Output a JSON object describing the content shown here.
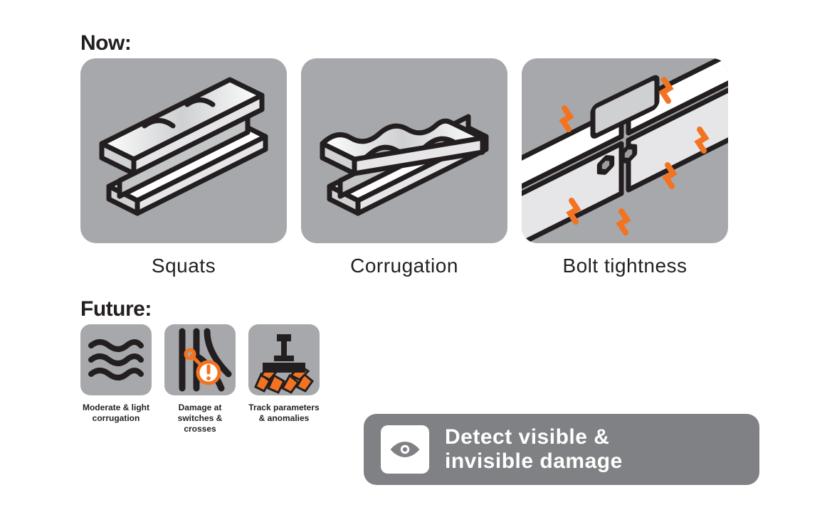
{
  "colors": {
    "bg": "#ffffff",
    "tile": "#a7a8ab",
    "ink": "#231f20",
    "accent": "#f37321",
    "banner": "#808184",
    "steel_light": "#ffffff",
    "steel_mid": "#d1d2d4"
  },
  "now": {
    "label": "Now:",
    "items": [
      {
        "label": "Squats",
        "icon": "squats"
      },
      {
        "label": "Corrugation",
        "icon": "corrugation"
      },
      {
        "label": "Bolt tightness",
        "icon": "bolt-tightness"
      }
    ]
  },
  "future": {
    "label": "Future:",
    "items": [
      {
        "label": "Moderate & light\ncorrugation",
        "icon": "waves"
      },
      {
        "label": "Damage at\nswitches & crosses",
        "icon": "switches"
      },
      {
        "label": "Track parameters\n& anomalies",
        "icon": "track-params"
      }
    ]
  },
  "banner": {
    "text": "Detect visible &\ninvisible damage",
    "icon": "eye"
  }
}
